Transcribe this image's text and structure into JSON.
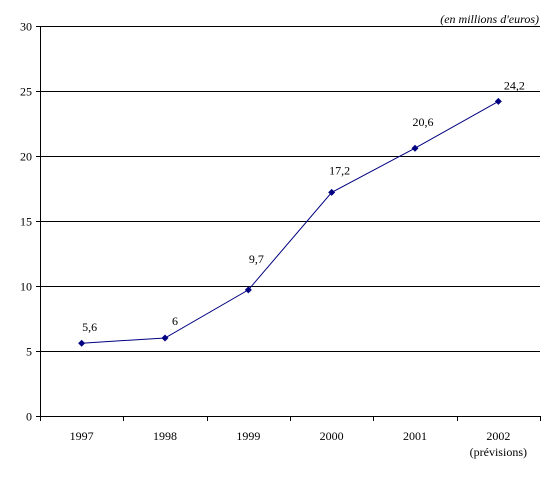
{
  "chart_data": {
    "type": "line",
    "unit_note": "(en millions d'euros)",
    "categories": [
      "1997",
      "1998",
      "1999",
      "2000",
      "2001",
      "2002"
    ],
    "category_sublabel": {
      "2002": "(prévisions)"
    },
    "series": [
      {
        "values": [
          5.6,
          6,
          9.7,
          17.2,
          20.6,
          24.2
        ],
        "data_labels": [
          "5,6",
          "6",
          "9,7",
          "17,2",
          "20,6",
          "24,2"
        ]
      }
    ],
    "ylim": [
      0,
      30
    ],
    "yticks": [
      0,
      5,
      10,
      15,
      20,
      25,
      30
    ],
    "grid": true,
    "line_color": "#000080",
    "marker_color": "#000080",
    "grid_color": "#000000"
  }
}
